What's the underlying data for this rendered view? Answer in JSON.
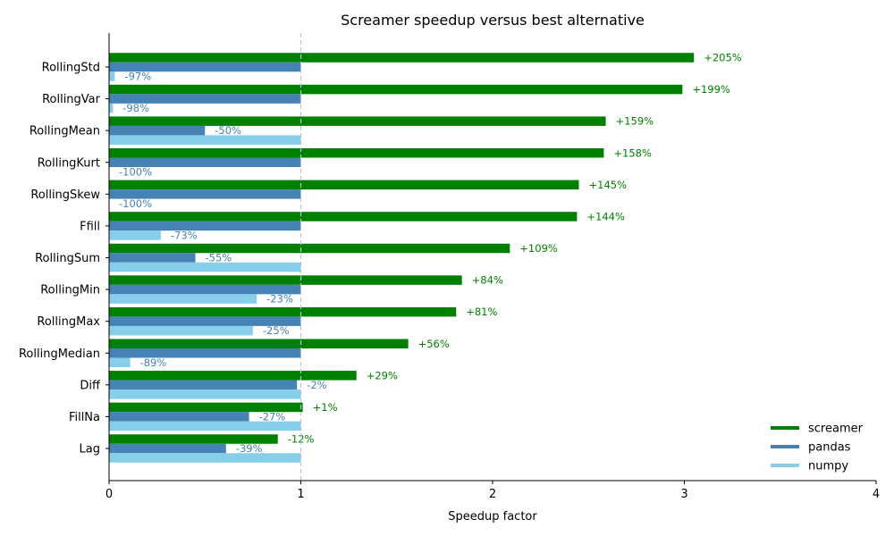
{
  "chart_data": {
    "type": "bar",
    "orientation": "horizontal",
    "title": "Screamer speedup versus best alternative",
    "xlabel": "Speedup factor",
    "ylabel": "",
    "xlim": [
      0,
      4
    ],
    "xticks": [
      0,
      1,
      2,
      3,
      4
    ],
    "reference_line": 1,
    "grid": false,
    "legend_position": "lower-right",
    "categories": [
      "RollingStd",
      "RollingVar",
      "RollingMean",
      "RollingKurt",
      "RollingSkew",
      "Ffill",
      "RollingSum",
      "RollingMin",
      "RollingMax",
      "RollingMedian",
      "Diff",
      "FillNa",
      "Lag"
    ],
    "series": [
      {
        "name": "screamer",
        "color": "#008000",
        "values": [
          3.05,
          2.99,
          2.59,
          2.58,
          2.45,
          2.44,
          2.09,
          1.84,
          1.81,
          1.56,
          1.29,
          1.01,
          0.88
        ],
        "labels": [
          "+205%",
          "+199%",
          "+159%",
          "+158%",
          "+145%",
          "+144%",
          "+109%",
          "+84%",
          "+81%",
          "+56%",
          "+29%",
          "+1%",
          "-12%"
        ]
      },
      {
        "name": "pandas",
        "color": "#4682b4",
        "values": [
          1,
          1,
          0.5,
          1,
          1,
          1,
          0.45,
          1,
          1,
          1,
          0.98,
          0.73,
          0.61
        ],
        "labels": [
          "",
          "",
          "-50%",
          "",
          "",
          "",
          "-55%",
          "",
          "",
          "",
          "-2%",
          "-27%",
          "-39%"
        ]
      },
      {
        "name": "numpy",
        "color": "#87ceeb",
        "values": [
          0.03,
          0.02,
          1,
          0,
          0,
          0.27,
          1,
          0.77,
          0.75,
          0.11,
          1,
          1,
          1
        ],
        "labels": [
          "-97%",
          "-98%",
          "",
          "-100%",
          "-100%",
          "-73%",
          "",
          "-23%",
          "-25%",
          "-89%",
          "",
          "",
          ""
        ]
      }
    ]
  }
}
